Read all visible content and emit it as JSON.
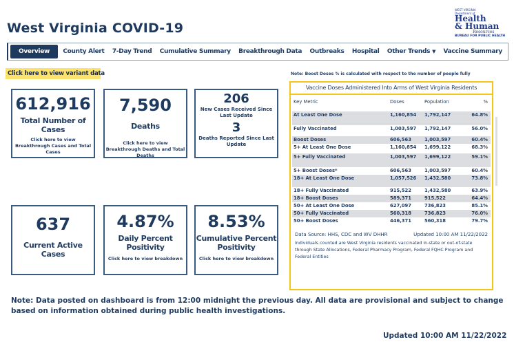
{
  "header": {
    "title": "West Virginia COVID-19",
    "logo": {
      "line1": "WEST VIRGINIA",
      "line2": "Department of",
      "line3": "Health",
      "line4": "& Human",
      "line5": "Resources",
      "line6": "BUREAU FOR PUBLIC HEALTH"
    }
  },
  "nav": {
    "items": [
      {
        "label": "Overview",
        "active": true
      },
      {
        "label": "County Alert"
      },
      {
        "label": "7-Day Trend"
      },
      {
        "label": "Cumulative Summary"
      },
      {
        "label": "Breakthrough Data"
      },
      {
        "label": "Outbreaks"
      },
      {
        "label": "Hospital"
      },
      {
        "label": "Other Trends"
      },
      {
        "label": "Vaccine Summary"
      }
    ],
    "dropdown_icon": "caret-down"
  },
  "variant_link": "Click here to view variant data",
  "cards": {
    "total": {
      "value": "612,916",
      "label": "Total Number of Cases",
      "link": "Click here to view Breakthrough Cases and Total Cases"
    },
    "deaths": {
      "value": "7,590",
      "label": "Deaths",
      "link": "Click here to view Breakthrough Deaths and Total Deaths"
    },
    "new": {
      "value": "206",
      "label": "New Cases Received Since Last Update",
      "value2": "3",
      "label2": "Deaths Reported Since Last Update"
    },
    "active": {
      "value": "637",
      "label": "Current Active Cases"
    },
    "daily": {
      "value": "4.87%",
      "label": "Daily Percent Positivity",
      "link": "Click here to view breakdown"
    },
    "cumulative": {
      "value": "8.53%",
      "label": "Cumulative Percent Positivity",
      "link": "Click here to view breakdown"
    }
  },
  "vaccine": {
    "note": "Note: Boost Doses % is calculated with respect to the number of people fully",
    "title": "Vaccine Doses Administered Into Arms of West Virginia Residents",
    "columns": [
      "Key Metric",
      "Doses",
      "Population",
      "%"
    ],
    "rows": [
      [
        "At Least One Dose",
        "1,160,854",
        "1,792,147",
        "64.8%"
      ],
      [
        "Fully Vaccinated",
        "1,003,597",
        "1,792,147",
        "56.0%"
      ],
      [
        "Boost Doses",
        "606,563",
        "1,003,597",
        "60.4%"
      ],
      [
        "5+ At Least One Dose",
        "1,160,854",
        "1,699,122",
        "68.3%"
      ],
      [
        "5+ Fully Vaccinated",
        "1,003,597",
        "1,699,122",
        "59.1%"
      ],
      [
        "5+ Boost Doses*",
        "606,563",
        "1,003,597",
        "60.4%"
      ],
      [
        "18+ At Least One Dose",
        "1,057,526",
        "1,432,580",
        "73.8%"
      ],
      [
        "18+ Fully Vaccinated",
        "915,522",
        "1,432,580",
        "63.9%"
      ],
      [
        "18+ Boost Doses",
        "589,371",
        "915,522",
        "64.4%"
      ],
      [
        "50+ At Least One Dose",
        "627,097",
        "736,823",
        "85.1%"
      ],
      [
        "50+ Fully Vaccinated",
        "560,318",
        "736,823",
        "76.0%"
      ],
      [
        "50+ Boost Doses",
        "446,371",
        "560,318",
        "79.7%"
      ]
    ],
    "source": "Data Source: HHS, CDC and WV DHHR",
    "updated": "Updated  10:00 AM  11/22/2022",
    "individuals": "Individuals counted are West Virginia residents vaccinated in-state or out-of-state through State Allocations, Federal Pharmacy Program, Federal FQHC Program and Federal Entities"
  },
  "footer": {
    "note": "Note: Data posted on dashboard is from 12:00 midnight the previous day. All data are provisional and subject to change based on information obtained during public health investigations.",
    "updated": "Updated   10:00 AM   11/22/2022"
  }
}
